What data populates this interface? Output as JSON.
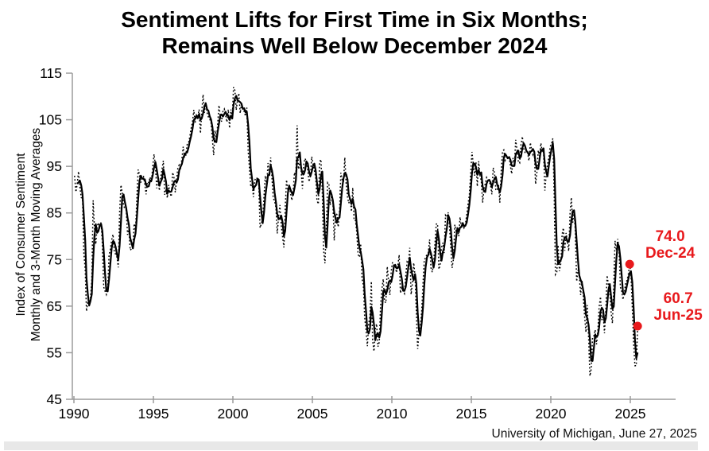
{
  "title": {
    "line1": "Sentiment Lifts for First Time in Six Months;",
    "line2": "Remains Well Below December 2024"
  },
  "y_axis": {
    "label_line1": "Index of Consumer Sentiment",
    "label_line2": "Monthly and 3-Month Moving Averages",
    "ticks": [
      115,
      105,
      95,
      85,
      75,
      65,
      55,
      45
    ]
  },
  "x_axis": {
    "ticks": [
      1990,
      1995,
      2000,
      2005,
      2010,
      2015,
      2020,
      2025
    ]
  },
  "annotations": [
    {
      "value": "74.0",
      "label": "Dec-24",
      "year": 2024,
      "month": 12,
      "y_value": 74.0
    },
    {
      "value": "60.7",
      "label": "Jun-25",
      "year": 2025,
      "month": 6,
      "y_value": 60.7
    }
  ],
  "source": "University of Michigan, June 27, 2025",
  "colors": {
    "annotation_red": "#e8191c",
    "axis_gray": "#9b9b9b",
    "line_black": "#000000",
    "strip_gray": "#e8e8e8"
  },
  "chart_data": {
    "type": "line",
    "title": "Sentiment Lifts for First Time in Six Months; Remains Well Below December 2024",
    "xlabel": "",
    "ylabel": "Index of Consumer Sentiment, Monthly and 3-Month Moving Averages",
    "ylim": [
      45,
      115
    ],
    "xlim": [
      1990,
      2028
    ],
    "grid": false,
    "legend_position": "none",
    "x_start": {
      "year": 1990,
      "month": 1
    },
    "x_end": {
      "year": 2025,
      "month": 6
    },
    "series": [
      {
        "name": "Monthly",
        "style": "dotted",
        "values": [
          93.0,
          89.5,
          91.3,
          93.9,
          90.6,
          88.3,
          88.2,
          76.4,
          72.8,
          63.9,
          66.0,
          65.5,
          66.8,
          70.4,
          87.7,
          81.8,
          78.3,
          82.1,
          82.9,
          82.0,
          83.0,
          78.3,
          69.1,
          68.2,
          67.5,
          68.8,
          76.0,
          77.2,
          79.2,
          80.4,
          76.6,
          76.1,
          75.5,
          73.3,
          85.3,
          91.0,
          89.3,
          86.6,
          85.9,
          85.6,
          80.3,
          81.5,
          77.0,
          77.3,
          77.9,
          82.7,
          81.2,
          88.2,
          94.3,
          93.2,
          91.5,
          92.6,
          92.8,
          91.2,
          89.0,
          91.7,
          91.5,
          92.7,
          91.6,
          95.1,
          97.6,
          95.1,
          90.3,
          92.5,
          89.8,
          92.7,
          94.4,
          96.2,
          88.9,
          90.2,
          88.2,
          91.0,
          89.3,
          88.5,
          93.7,
          92.7,
          89.4,
          92.4,
          94.7,
          95.3,
          94.7,
          96.5,
          99.2,
          96.9,
          97.4,
          99.7,
          100.0,
          101.4,
          103.2,
          104.5,
          107.1,
          104.4,
          106.0,
          105.6,
          107.2,
          102.1,
          106.6,
          110.4,
          106.5,
          108.7,
          106.5,
          105.6,
          105.2,
          104.4,
          100.9,
          97.4,
          102.7,
          100.5,
          103.9,
          108.1,
          105.7,
          104.6,
          106.8,
          107.3,
          106.0,
          104.5,
          107.2,
          103.2,
          107.2,
          105.4,
          112.0,
          111.3,
          107.1,
          109.2,
          110.7,
          106.4,
          108.3,
          107.3,
          106.8,
          105.8,
          107.6,
          98.4,
          94.7,
          90.6,
          91.5,
          88.4,
          92.0,
          92.6,
          92.4,
          91.5,
          81.8,
          82.7,
          83.9,
          88.8,
          93.0,
          90.7,
          95.7,
          93.0,
          96.9,
          92.4,
          88.1,
          87.6,
          86.1,
          80.6,
          84.2,
          86.7,
          82.4,
          79.9,
          77.6,
          86.0,
          92.1,
          89.7,
          90.9,
          89.3,
          87.7,
          89.6,
          93.7,
          92.6,
          103.8,
          94.4,
          95.8,
          94.2,
          90.2,
          95.6,
          96.7,
          95.9,
          94.2,
          91.7,
          92.8,
          97.1,
          95.5,
          94.1,
          92.6,
          87.7,
          86.9,
          96.0,
          96.5,
          89.1,
          76.9,
          74.2,
          81.6,
          91.5,
          91.2,
          86.7,
          88.9,
          87.4,
          79.1,
          84.9,
          84.7,
          82.0,
          85.4,
          93.6,
          92.1,
          91.7,
          96.9,
          91.3,
          88.4,
          87.1,
          88.3,
          85.3,
          90.4,
          83.4,
          83.4,
          80.9,
          76.1,
          75.5,
          78.4,
          70.8,
          69.5,
          62.6,
          59.8,
          56.4,
          61.2,
          63.0,
          70.3,
          57.6,
          55.3,
          60.1,
          61.2,
          56.3,
          57.3,
          65.1,
          68.7,
          70.8,
          66.0,
          65.7,
          73.5,
          70.6,
          67.4,
          72.5,
          74.4,
          73.6,
          73.6,
          72.2,
          73.6,
          76.0,
          67.8,
          68.9,
          68.2,
          67.7,
          71.6,
          74.5,
          74.2,
          77.5,
          67.5,
          69.8,
          74.3,
          71.5,
          63.7,
          55.8,
          59.5,
          60.8,
          63.7,
          69.9,
          75.0,
          75.3,
          76.2,
          76.4,
          79.3,
          73.2,
          72.3,
          74.3,
          78.3,
          82.6,
          82.7,
          72.9,
          73.8,
          77.6,
          78.6,
          76.4,
          84.5,
          84.1,
          85.1,
          82.1,
          77.5,
          73.2,
          75.1,
          82.5,
          81.2,
          81.6,
          80.0,
          84.1,
          81.9,
          82.5,
          81.8,
          82.5,
          84.6,
          86.9,
          88.8,
          93.6,
          98.1,
          95.4,
          93.0,
          95.9,
          90.7,
          96.1,
          93.1,
          91.9,
          87.2,
          90.0,
          91.3,
          92.6,
          92.0,
          91.7,
          91.0,
          89.0,
          94.7,
          93.5,
          90.0,
          89.8,
          91.2,
          87.2,
          93.8,
          98.2,
          98.5,
          96.3,
          96.9,
          97.0,
          97.1,
          95.0,
          93.4,
          96.8,
          95.1,
          100.7,
          98.5,
          95.9,
          95.7,
          99.7,
          101.4,
          98.8,
          98.0,
          98.2,
          97.9,
          96.2,
          100.1,
          98.6,
          97.5,
          98.3,
          91.2,
          93.8,
          98.4,
          97.2,
          100.0,
          98.2,
          98.4,
          89.8,
          93.2,
          95.5,
          96.8,
          99.3,
          99.8,
          101.0,
          89.1,
          71.8,
          72.3,
          78.1,
          72.5,
          74.1,
          80.4,
          81.8,
          76.9,
          80.7,
          79.0,
          76.8,
          84.9,
          88.3,
          82.9,
          85.5,
          81.2,
          70.3,
          72.8,
          71.7,
          67.4,
          70.6,
          67.2,
          62.8,
          59.4,
          65.2,
          58.4,
          50.0,
          51.5,
          58.2,
          58.6,
          59.9,
          56.8,
          59.7,
          64.9,
          67.0,
          62.0,
          63.5,
          59.2,
          64.4,
          71.6,
          69.5,
          68.1,
          63.8,
          61.3,
          69.7,
          79.0,
          76.9,
          79.4,
          77.2,
          69.1,
          68.2,
          66.4,
          67.9,
          70.1,
          70.5,
          71.8,
          74.0,
          71.7,
          64.7,
          57.0,
          52.2,
          52.2,
          60.7
        ]
      },
      {
        "name": "3-Month Moving Average",
        "style": "solid",
        "derived": "trailing 3-month moving average of the Monthly series"
      }
    ]
  }
}
